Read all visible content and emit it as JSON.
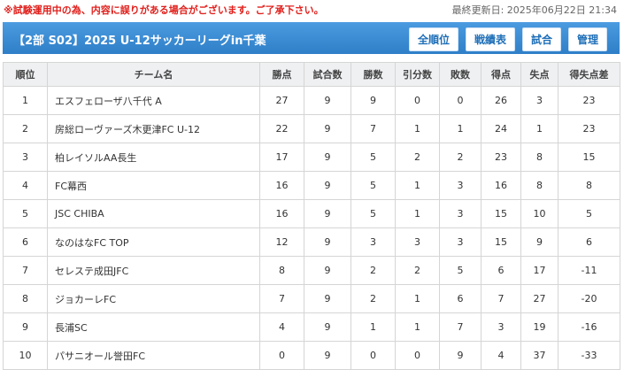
{
  "notice": "※試験運用中の為、内容に誤りがある場合がございます。ご了承下さい。",
  "updated": "最終更新日: 2025年06月22日 21:34",
  "header": {
    "title": "【2部 S02】2025 U-12サッカーリーグin千葉",
    "buttons": [
      "全順位",
      "戦績表",
      "試合",
      "管理"
    ]
  },
  "table": {
    "columns": [
      "順位",
      "チーム名",
      "勝点",
      "試合数",
      "勝数",
      "引分数",
      "敗数",
      "得点",
      "失点",
      "得失点差"
    ],
    "rows": [
      [
        1,
        "エスフェローザ八千代 A",
        27,
        9,
        9,
        0,
        0,
        26,
        3,
        23
      ],
      [
        2,
        "房総ローヴァーズ木更津FC U-12",
        22,
        9,
        7,
        1,
        1,
        24,
        1,
        23
      ],
      [
        3,
        "柏レイソルAA長生",
        17,
        9,
        5,
        2,
        2,
        23,
        8,
        15
      ],
      [
        4,
        "FC幕西",
        16,
        9,
        5,
        1,
        3,
        16,
        8,
        8
      ],
      [
        5,
        "JSC CHIBA",
        16,
        9,
        5,
        1,
        3,
        15,
        10,
        5
      ],
      [
        6,
        "なのはなFC TOP",
        12,
        9,
        3,
        3,
        3,
        15,
        9,
        6
      ],
      [
        7,
        "セレステ成田JFC",
        8,
        9,
        2,
        2,
        5,
        6,
        17,
        -11
      ],
      [
        8,
        "ジョカーレFC",
        7,
        9,
        2,
        1,
        6,
        7,
        27,
        -20
      ],
      [
        9,
        "長浦SC",
        4,
        9,
        1,
        1,
        7,
        3,
        19,
        -16
      ],
      [
        10,
        "パサニオール誉田FC",
        0,
        9,
        0,
        0,
        9,
        4,
        37,
        -33
      ]
    ]
  }
}
